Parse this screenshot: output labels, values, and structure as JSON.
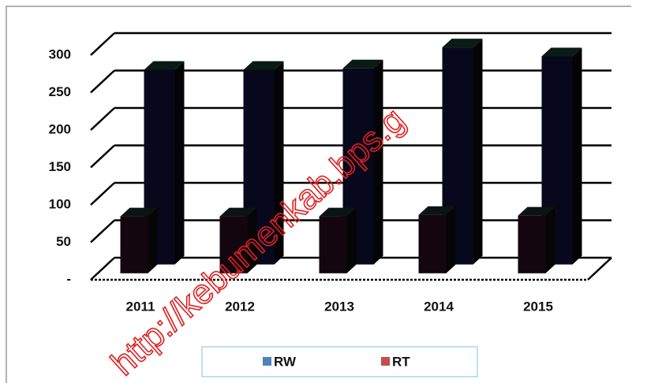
{
  "chart_data": {
    "type": "bar3d",
    "categories": [
      "2011",
      "2012",
      "2013",
      "2014",
      "2015"
    ],
    "series": [
      {
        "name": "RW",
        "color": "#4f81bd",
        "values": [
          76,
          76,
          76,
          78,
          77
        ]
      },
      {
        "name": "RT",
        "color": "#c0504d",
        "values": [
          260,
          260,
          262,
          290,
          278
        ]
      }
    ],
    "ylim": [
      0,
      300
    ],
    "yticks": [
      {
        "value": 0,
        "label": "-"
      },
      50,
      100,
      150,
      200,
      250,
      300
    ],
    "grid": true,
    "legend": "bottom",
    "watermark": "http://kebumenkab.bps.g"
  }
}
